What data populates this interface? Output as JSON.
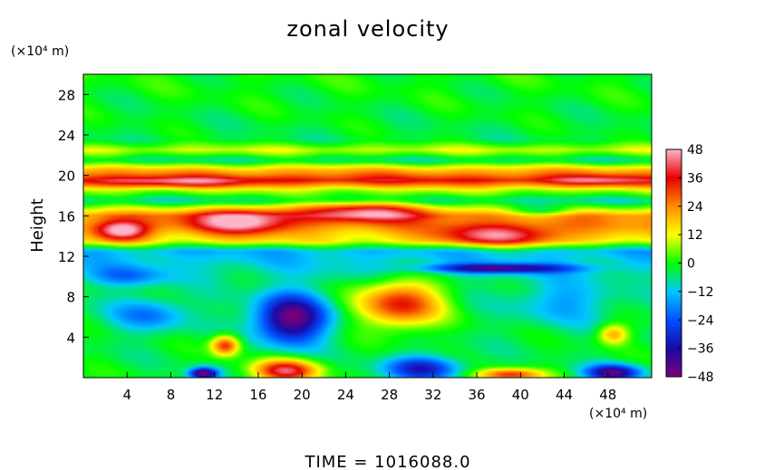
{
  "chart_data": {
    "type": "heatmap",
    "title": "zonal velocity",
    "ylabel": "Height",
    "y_unit_label": "(×10⁴ m)",
    "x_unit_label": "(×10⁴ m)",
    "footer": "TIME  =  1016088.0",
    "xlim": [
      0,
      52
    ],
    "ylim": [
      0,
      30
    ],
    "x_ticks": [
      4,
      8,
      12,
      16,
      20,
      24,
      28,
      32,
      36,
      40,
      44,
      48
    ],
    "y_ticks": [
      4,
      8,
      12,
      16,
      20,
      24,
      28
    ],
    "colorbar": {
      "min": -48,
      "max": 48,
      "ticks": [
        48,
        36,
        24,
        12,
        0,
        -12,
        -24,
        -36,
        -48
      ],
      "colors": [
        "#7a007a",
        "#1a0aa8",
        "#0050ff",
        "#00c8ff",
        "#00ff00",
        "#ffff00",
        "#ff8c00",
        "#e60000",
        "#ffb4c8"
      ]
    },
    "field": {
      "background": 0,
      "bands": [
        {
          "y": 30,
          "value": 0
        },
        {
          "y": 23.5,
          "value": -3
        },
        {
          "y": 22.5,
          "value": 10
        },
        {
          "y": 21.5,
          "value": -6
        },
        {
          "y": 20.6,
          "value": 18
        },
        {
          "y": 19.5,
          "value": 36
        },
        {
          "y": 18.5,
          "value": 8
        },
        {
          "y": 17.5,
          "value": -8
        },
        {
          "y": 16,
          "value": 24
        },
        {
          "y": 15,
          "value": 22
        },
        {
          "y": 13.5,
          "value": 12
        },
        {
          "y": 12.5,
          "value": -14
        },
        {
          "y": 11,
          "value": -10
        },
        {
          "y": 9,
          "value": -4
        },
        {
          "y": 0,
          "value": -2
        }
      ],
      "features": [
        {
          "x": 19,
          "y": 5.8,
          "sx": 3.2,
          "sy": 2.4,
          "value": -44
        },
        {
          "x": 29,
          "y": 7.3,
          "sx": 3.8,
          "sy": 2.3,
          "value": 38
        },
        {
          "x": 13,
          "y": 3.2,
          "sx": 1.3,
          "sy": 1.0,
          "value": 36
        },
        {
          "x": 18.5,
          "y": 0.7,
          "sx": 3.0,
          "sy": 1.1,
          "value": 42
        },
        {
          "x": 11,
          "y": 0.4,
          "sx": 1.3,
          "sy": 0.6,
          "value": -46
        },
        {
          "x": 31,
          "y": 0.9,
          "sx": 3.5,
          "sy": 1.2,
          "value": -30
        },
        {
          "x": 39,
          "y": 0.3,
          "sx": 3.0,
          "sy": 0.6,
          "value": 34
        },
        {
          "x": 48.5,
          "y": 0.5,
          "sx": 2.5,
          "sy": 0.8,
          "value": -40
        },
        {
          "x": 38,
          "y": 10.8,
          "sx": 6.5,
          "sy": 0.45,
          "value": -34
        },
        {
          "x": 6,
          "y": 6.2,
          "sx": 3.5,
          "sy": 1.6,
          "value": -16
        },
        {
          "x": 44,
          "y": 7.5,
          "sx": 4.5,
          "sy": 2.2,
          "value": -12
        },
        {
          "x": 48.5,
          "y": 4.3,
          "sx": 1.4,
          "sy": 1.0,
          "value": 24
        },
        {
          "x": 3.5,
          "y": 14.5,
          "sx": 2.5,
          "sy": 1.0,
          "value": 34
        },
        {
          "x": 14.5,
          "y": 15.5,
          "sx": 4.5,
          "sy": 1.3,
          "value": 30
        },
        {
          "x": 38,
          "y": 14,
          "sx": 6.0,
          "sy": 1.1,
          "value": 28
        },
        {
          "x": 26,
          "y": 16.5,
          "sx": 6.0,
          "sy": 1.0,
          "value": 30
        },
        {
          "x": 42,
          "y": 16.5,
          "sx": 3.0,
          "sy": 0.6,
          "value": -16
        },
        {
          "x": 8,
          "y": 19.3,
          "sx": 7.0,
          "sy": 0.5,
          "value": 12
        },
        {
          "x": 47,
          "y": 19.5,
          "sx": 4.0,
          "sy": 0.5,
          "value": 10
        },
        {
          "x": 4,
          "y": 10,
          "sx": 3.5,
          "sy": 1.0,
          "value": -14
        }
      ]
    }
  }
}
